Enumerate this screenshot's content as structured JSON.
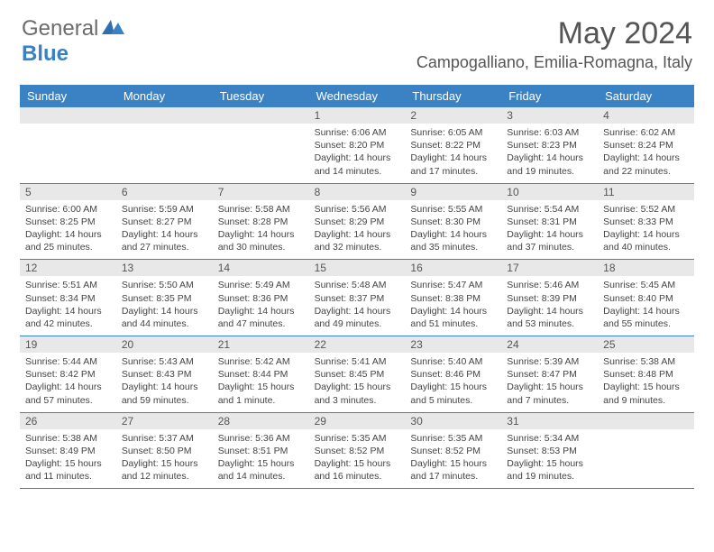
{
  "logo": {
    "part1": "General",
    "part2": "Blue"
  },
  "title": "May 2024",
  "location": "Campogalliano, Emilia-Romagna, Italy",
  "colors": {
    "header_bg": "#3b82c4",
    "daynum_bg": "#e8e8e8",
    "text": "#444444",
    "title_text": "#555555"
  },
  "weekdays": [
    "Sunday",
    "Monday",
    "Tuesday",
    "Wednesday",
    "Thursday",
    "Friday",
    "Saturday"
  ],
  "weeks": [
    [
      {
        "num": "",
        "sunrise": "",
        "sunset": "",
        "daylight": ""
      },
      {
        "num": "",
        "sunrise": "",
        "sunset": "",
        "daylight": ""
      },
      {
        "num": "",
        "sunrise": "",
        "sunset": "",
        "daylight": ""
      },
      {
        "num": "1",
        "sunrise": "Sunrise: 6:06 AM",
        "sunset": "Sunset: 8:20 PM",
        "daylight": "Daylight: 14 hours and 14 minutes."
      },
      {
        "num": "2",
        "sunrise": "Sunrise: 6:05 AM",
        "sunset": "Sunset: 8:22 PM",
        "daylight": "Daylight: 14 hours and 17 minutes."
      },
      {
        "num": "3",
        "sunrise": "Sunrise: 6:03 AM",
        "sunset": "Sunset: 8:23 PM",
        "daylight": "Daylight: 14 hours and 19 minutes."
      },
      {
        "num": "4",
        "sunrise": "Sunrise: 6:02 AM",
        "sunset": "Sunset: 8:24 PM",
        "daylight": "Daylight: 14 hours and 22 minutes."
      }
    ],
    [
      {
        "num": "5",
        "sunrise": "Sunrise: 6:00 AM",
        "sunset": "Sunset: 8:25 PM",
        "daylight": "Daylight: 14 hours and 25 minutes."
      },
      {
        "num": "6",
        "sunrise": "Sunrise: 5:59 AM",
        "sunset": "Sunset: 8:27 PM",
        "daylight": "Daylight: 14 hours and 27 minutes."
      },
      {
        "num": "7",
        "sunrise": "Sunrise: 5:58 AM",
        "sunset": "Sunset: 8:28 PM",
        "daylight": "Daylight: 14 hours and 30 minutes."
      },
      {
        "num": "8",
        "sunrise": "Sunrise: 5:56 AM",
        "sunset": "Sunset: 8:29 PM",
        "daylight": "Daylight: 14 hours and 32 minutes."
      },
      {
        "num": "9",
        "sunrise": "Sunrise: 5:55 AM",
        "sunset": "Sunset: 8:30 PM",
        "daylight": "Daylight: 14 hours and 35 minutes."
      },
      {
        "num": "10",
        "sunrise": "Sunrise: 5:54 AM",
        "sunset": "Sunset: 8:31 PM",
        "daylight": "Daylight: 14 hours and 37 minutes."
      },
      {
        "num": "11",
        "sunrise": "Sunrise: 5:52 AM",
        "sunset": "Sunset: 8:33 PM",
        "daylight": "Daylight: 14 hours and 40 minutes."
      }
    ],
    [
      {
        "num": "12",
        "sunrise": "Sunrise: 5:51 AM",
        "sunset": "Sunset: 8:34 PM",
        "daylight": "Daylight: 14 hours and 42 minutes."
      },
      {
        "num": "13",
        "sunrise": "Sunrise: 5:50 AM",
        "sunset": "Sunset: 8:35 PM",
        "daylight": "Daylight: 14 hours and 44 minutes."
      },
      {
        "num": "14",
        "sunrise": "Sunrise: 5:49 AM",
        "sunset": "Sunset: 8:36 PM",
        "daylight": "Daylight: 14 hours and 47 minutes."
      },
      {
        "num": "15",
        "sunrise": "Sunrise: 5:48 AM",
        "sunset": "Sunset: 8:37 PM",
        "daylight": "Daylight: 14 hours and 49 minutes."
      },
      {
        "num": "16",
        "sunrise": "Sunrise: 5:47 AM",
        "sunset": "Sunset: 8:38 PM",
        "daylight": "Daylight: 14 hours and 51 minutes."
      },
      {
        "num": "17",
        "sunrise": "Sunrise: 5:46 AM",
        "sunset": "Sunset: 8:39 PM",
        "daylight": "Daylight: 14 hours and 53 minutes."
      },
      {
        "num": "18",
        "sunrise": "Sunrise: 5:45 AM",
        "sunset": "Sunset: 8:40 PM",
        "daylight": "Daylight: 14 hours and 55 minutes."
      }
    ],
    [
      {
        "num": "19",
        "sunrise": "Sunrise: 5:44 AM",
        "sunset": "Sunset: 8:42 PM",
        "daylight": "Daylight: 14 hours and 57 minutes."
      },
      {
        "num": "20",
        "sunrise": "Sunrise: 5:43 AM",
        "sunset": "Sunset: 8:43 PM",
        "daylight": "Daylight: 14 hours and 59 minutes."
      },
      {
        "num": "21",
        "sunrise": "Sunrise: 5:42 AM",
        "sunset": "Sunset: 8:44 PM",
        "daylight": "Daylight: 15 hours and 1 minute."
      },
      {
        "num": "22",
        "sunrise": "Sunrise: 5:41 AM",
        "sunset": "Sunset: 8:45 PM",
        "daylight": "Daylight: 15 hours and 3 minutes."
      },
      {
        "num": "23",
        "sunrise": "Sunrise: 5:40 AM",
        "sunset": "Sunset: 8:46 PM",
        "daylight": "Daylight: 15 hours and 5 minutes."
      },
      {
        "num": "24",
        "sunrise": "Sunrise: 5:39 AM",
        "sunset": "Sunset: 8:47 PM",
        "daylight": "Daylight: 15 hours and 7 minutes."
      },
      {
        "num": "25",
        "sunrise": "Sunrise: 5:38 AM",
        "sunset": "Sunset: 8:48 PM",
        "daylight": "Daylight: 15 hours and 9 minutes."
      }
    ],
    [
      {
        "num": "26",
        "sunrise": "Sunrise: 5:38 AM",
        "sunset": "Sunset: 8:49 PM",
        "daylight": "Daylight: 15 hours and 11 minutes."
      },
      {
        "num": "27",
        "sunrise": "Sunrise: 5:37 AM",
        "sunset": "Sunset: 8:50 PM",
        "daylight": "Daylight: 15 hours and 12 minutes."
      },
      {
        "num": "28",
        "sunrise": "Sunrise: 5:36 AM",
        "sunset": "Sunset: 8:51 PM",
        "daylight": "Daylight: 15 hours and 14 minutes."
      },
      {
        "num": "29",
        "sunrise": "Sunrise: 5:35 AM",
        "sunset": "Sunset: 8:52 PM",
        "daylight": "Daylight: 15 hours and 16 minutes."
      },
      {
        "num": "30",
        "sunrise": "Sunrise: 5:35 AM",
        "sunset": "Sunset: 8:52 PM",
        "daylight": "Daylight: 15 hours and 17 minutes."
      },
      {
        "num": "31",
        "sunrise": "Sunrise: 5:34 AM",
        "sunset": "Sunset: 8:53 PM",
        "daylight": "Daylight: 15 hours and 19 minutes."
      },
      {
        "num": "",
        "sunrise": "",
        "sunset": "",
        "daylight": ""
      }
    ]
  ]
}
